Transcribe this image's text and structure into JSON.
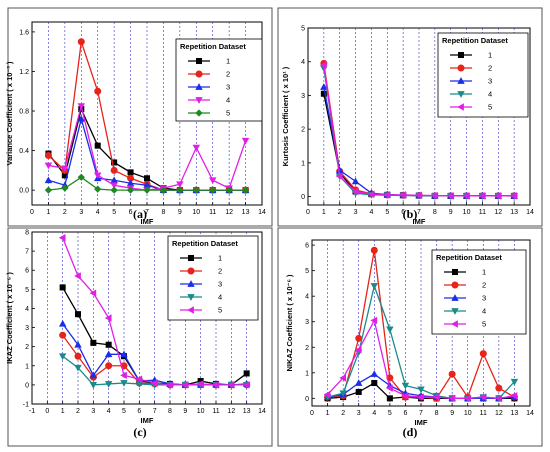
{
  "figure": {
    "background": "#ffffff"
  },
  "chart_data": [
    {
      "panel_label": "(a)",
      "type": "line",
      "xlabel": "IMF",
      "ylabel": "Variance Coefficient ( x 10⁻³ )",
      "xlim": [
        0,
        14
      ],
      "ylim": [
        -0.15,
        1.7
      ],
      "xticks": [
        0,
        1,
        2,
        3,
        4,
        5,
        6,
        7,
        8,
        9,
        10,
        11,
        12,
        13,
        14
      ],
      "yticks": [
        0.0,
        0.4,
        0.8,
        1.2,
        1.6
      ],
      "ytick_labels": [
        "0.0",
        "0.4",
        "0.8",
        "1.2",
        "1.6"
      ],
      "grid": "vertical dashed",
      "legend": {
        "title": "Repetition Dataset",
        "placement": "top-right"
      },
      "x": [
        1,
        2,
        3,
        4,
        5,
        6,
        7,
        8,
        9,
        10,
        11,
        12,
        13
      ],
      "series": [
        {
          "name": "1",
          "color": "#000000",
          "marker": "square",
          "values": [
            0.37,
            0.15,
            0.82,
            0.45,
            0.28,
            0.18,
            0.12,
            0.02,
            0.0,
            0.0,
            0.0,
            0.0,
            0.0
          ]
        },
        {
          "name": "2",
          "color": "#e8231a",
          "marker": "circle",
          "values": [
            0.35,
            0.2,
            1.5,
            1.0,
            0.2,
            0.12,
            0.06,
            0.0,
            0.0,
            0.0,
            0.0,
            0.0,
            0.0
          ]
        },
        {
          "name": "3",
          "color": "#1a2ee8",
          "marker": "triangle",
          "values": [
            0.1,
            0.05,
            0.72,
            0.12,
            0.1,
            0.07,
            0.05,
            0.0,
            0.0,
            0.0,
            0.0,
            0.0,
            0.0
          ]
        },
        {
          "name": "4",
          "color": "#e11ee8",
          "marker": "triangle-down",
          "values": [
            0.25,
            0.22,
            0.85,
            0.15,
            0.05,
            0.02,
            0.0,
            0.02,
            0.06,
            0.43,
            0.1,
            0.02,
            0.5
          ]
        },
        {
          "name": "5",
          "color": "#1e8a1e",
          "marker": "diamond",
          "values": [
            0.0,
            0.02,
            0.13,
            0.01,
            0.0,
            0.0,
            0.0,
            0.0,
            0.0,
            0.0,
            0.0,
            0.0,
            0.0
          ]
        }
      ]
    },
    {
      "panel_label": "(b)",
      "type": "line",
      "xlabel": "IMF",
      "ylabel": "Kurtosis Coefficient ( x 10¹ )",
      "xlim": [
        0,
        14
      ],
      "ylim": [
        -0.25,
        5
      ],
      "xticks": [
        0,
        1,
        2,
        3,
        4,
        5,
        6,
        7,
        8,
        9,
        10,
        11,
        12,
        13,
        14
      ],
      "yticks": [
        0,
        1,
        2,
        3,
        4,
        5
      ],
      "ytick_labels": [
        "0",
        "1",
        "2",
        "3",
        "4",
        "5"
      ],
      "grid": "vertical dashed",
      "legend": {
        "title": "Repetition Dataset",
        "placement": "top-right"
      },
      "x": [
        1,
        2,
        3,
        4,
        5,
        6,
        7,
        8,
        9,
        10,
        11,
        12,
        13
      ],
      "series": [
        {
          "name": "1",
          "color": "#000000",
          "marker": "square",
          "values": [
            3.05,
            0.7,
            0.15,
            0.07,
            0.05,
            0.04,
            0.03,
            0.02,
            0.02,
            0.02,
            0.02,
            0.02,
            0.02
          ]
        },
        {
          "name": "2",
          "color": "#e8231a",
          "marker": "circle",
          "values": [
            3.95,
            0.75,
            0.2,
            0.08,
            0.05,
            0.04,
            0.03,
            0.02,
            0.02,
            0.02,
            0.02,
            0.02,
            0.02
          ]
        },
        {
          "name": "3",
          "color": "#1a2ee8",
          "marker": "triangle",
          "values": [
            3.25,
            0.78,
            0.45,
            0.1,
            0.06,
            0.04,
            0.03,
            0.02,
            0.02,
            0.02,
            0.02,
            0.02,
            0.02
          ]
        },
        {
          "name": "4",
          "color": "#1a8a8a",
          "marker": "triangle-down",
          "values": [
            3.8,
            0.6,
            0.1,
            0.05,
            0.04,
            0.03,
            0.03,
            0.02,
            0.02,
            0.02,
            0.02,
            0.02,
            0.02
          ]
        },
        {
          "name": "5",
          "color": "#e11ee8",
          "marker": "triangle-left",
          "values": [
            3.9,
            0.6,
            0.15,
            0.07,
            0.05,
            0.05,
            0.04,
            0.03,
            0.02,
            0.02,
            0.02,
            0.02,
            0.02
          ]
        }
      ]
    },
    {
      "panel_label": "(c)",
      "type": "line",
      "xlabel": "IMF",
      "ylabel": "IKAZ Coefficient ( x 10⁻⁵ )",
      "xlim": [
        -1,
        14
      ],
      "ylim": [
        -1,
        8
      ],
      "xticks": [
        -1,
        0,
        1,
        2,
        3,
        4,
        5,
        6,
        7,
        8,
        9,
        10,
        11,
        12,
        13,
        14
      ],
      "yticks": [
        -1,
        0,
        1,
        2,
        3,
        4,
        5,
        6,
        7,
        8
      ],
      "ytick_labels": [
        "-1",
        "0",
        "1",
        "2",
        "3",
        "4",
        "5",
        "6",
        "7",
        "8"
      ],
      "grid": "vertical dashed",
      "legend": {
        "title": "Repetition Dataset",
        "placement": "top-right"
      },
      "x": [
        1,
        2,
        3,
        4,
        5,
        6,
        7,
        8,
        9,
        10,
        11,
        12,
        13
      ],
      "series": [
        {
          "name": "1",
          "color": "#000000",
          "marker": "square",
          "values": [
            5.1,
            3.7,
            2.2,
            2.1,
            1.5,
            0.2,
            0.1,
            0.05,
            0.0,
            0.2,
            0.05,
            0.0,
            0.6
          ]
        },
        {
          "name": "2",
          "color": "#e8231a",
          "marker": "circle",
          "values": [
            2.6,
            1.5,
            0.4,
            1.0,
            1.0,
            0.1,
            0.05,
            0.0,
            0.0,
            0.0,
            0.0,
            0.0,
            0.0
          ]
        },
        {
          "name": "3",
          "color": "#1a2ee8",
          "marker": "triangle",
          "values": [
            3.2,
            2.1,
            0.5,
            1.6,
            1.6,
            0.2,
            0.25,
            0.05,
            0.0,
            0.0,
            0.0,
            0.0,
            0.05
          ]
        },
        {
          "name": "4",
          "color": "#1a8a8a",
          "marker": "triangle-down",
          "values": [
            1.5,
            0.9,
            0.0,
            0.05,
            0.1,
            0.05,
            0.0,
            0.0,
            0.0,
            0.0,
            0.0,
            0.0,
            0.0
          ]
        },
        {
          "name": "5",
          "color": "#e11ee8",
          "marker": "triangle-left",
          "values": [
            7.7,
            5.7,
            4.8,
            3.5,
            0.5,
            0.3,
            0.1,
            0.0,
            0.0,
            0.05,
            0.0,
            0.0,
            0.0
          ]
        }
      ]
    },
    {
      "panel_label": "(d)",
      "type": "line",
      "xlabel": "IMF",
      "ylabel": "NIKAZ Coefficient ( x 10⁻⁶ )",
      "xlim": [
        0,
        14
      ],
      "ylim": [
        -0.3,
        6.2
      ],
      "xticks": [
        0,
        1,
        2,
        3,
        4,
        5,
        6,
        7,
        8,
        9,
        10,
        11,
        12,
        13,
        14
      ],
      "yticks": [
        0,
        1,
        2,
        3,
        4,
        5,
        6
      ],
      "ytick_labels": [
        "0",
        "1",
        "2",
        "3",
        "4",
        "5",
        "6"
      ],
      "grid": "vertical dashed",
      "legend": {
        "title": "Repetition Dataset",
        "placement": "top-right"
      },
      "x": [
        1,
        2,
        3,
        4,
        5,
        6,
        7,
        8,
        9,
        10,
        11,
        12,
        13
      ],
      "series": [
        {
          "name": "1",
          "color": "#000000",
          "marker": "square",
          "values": [
            0.0,
            0.05,
            0.25,
            0.6,
            0.0,
            0.05,
            0.0,
            0.0,
            0.0,
            0.0,
            0.0,
            0.0,
            0.0
          ]
        },
        {
          "name": "2",
          "color": "#e8231a",
          "marker": "circle",
          "values": [
            0.05,
            0.1,
            2.35,
            5.8,
            0.8,
            0.05,
            0.05,
            0.0,
            0.95,
            0.05,
            1.75,
            0.4,
            0.05
          ]
        },
        {
          "name": "3",
          "color": "#1a2ee8",
          "marker": "triangle",
          "values": [
            0.05,
            0.15,
            0.6,
            0.95,
            0.5,
            0.2,
            0.1,
            0.05,
            0.0,
            0.0,
            0.0,
            0.0,
            0.05
          ]
        },
        {
          "name": "4",
          "color": "#1a8a8a",
          "marker": "triangle-down",
          "values": [
            0.05,
            0.2,
            1.8,
            4.4,
            2.7,
            0.5,
            0.35,
            0.1,
            0.0,
            0.0,
            0.05,
            0.0,
            0.65
          ]
        },
        {
          "name": "5",
          "color": "#e11ee8",
          "marker": "triangle-left",
          "values": [
            0.15,
            0.8,
            1.9,
            3.05,
            0.4,
            0.1,
            0.05,
            0.05,
            0.0,
            0.0,
            0.05,
            0.0,
            0.1
          ]
        }
      ]
    }
  ]
}
